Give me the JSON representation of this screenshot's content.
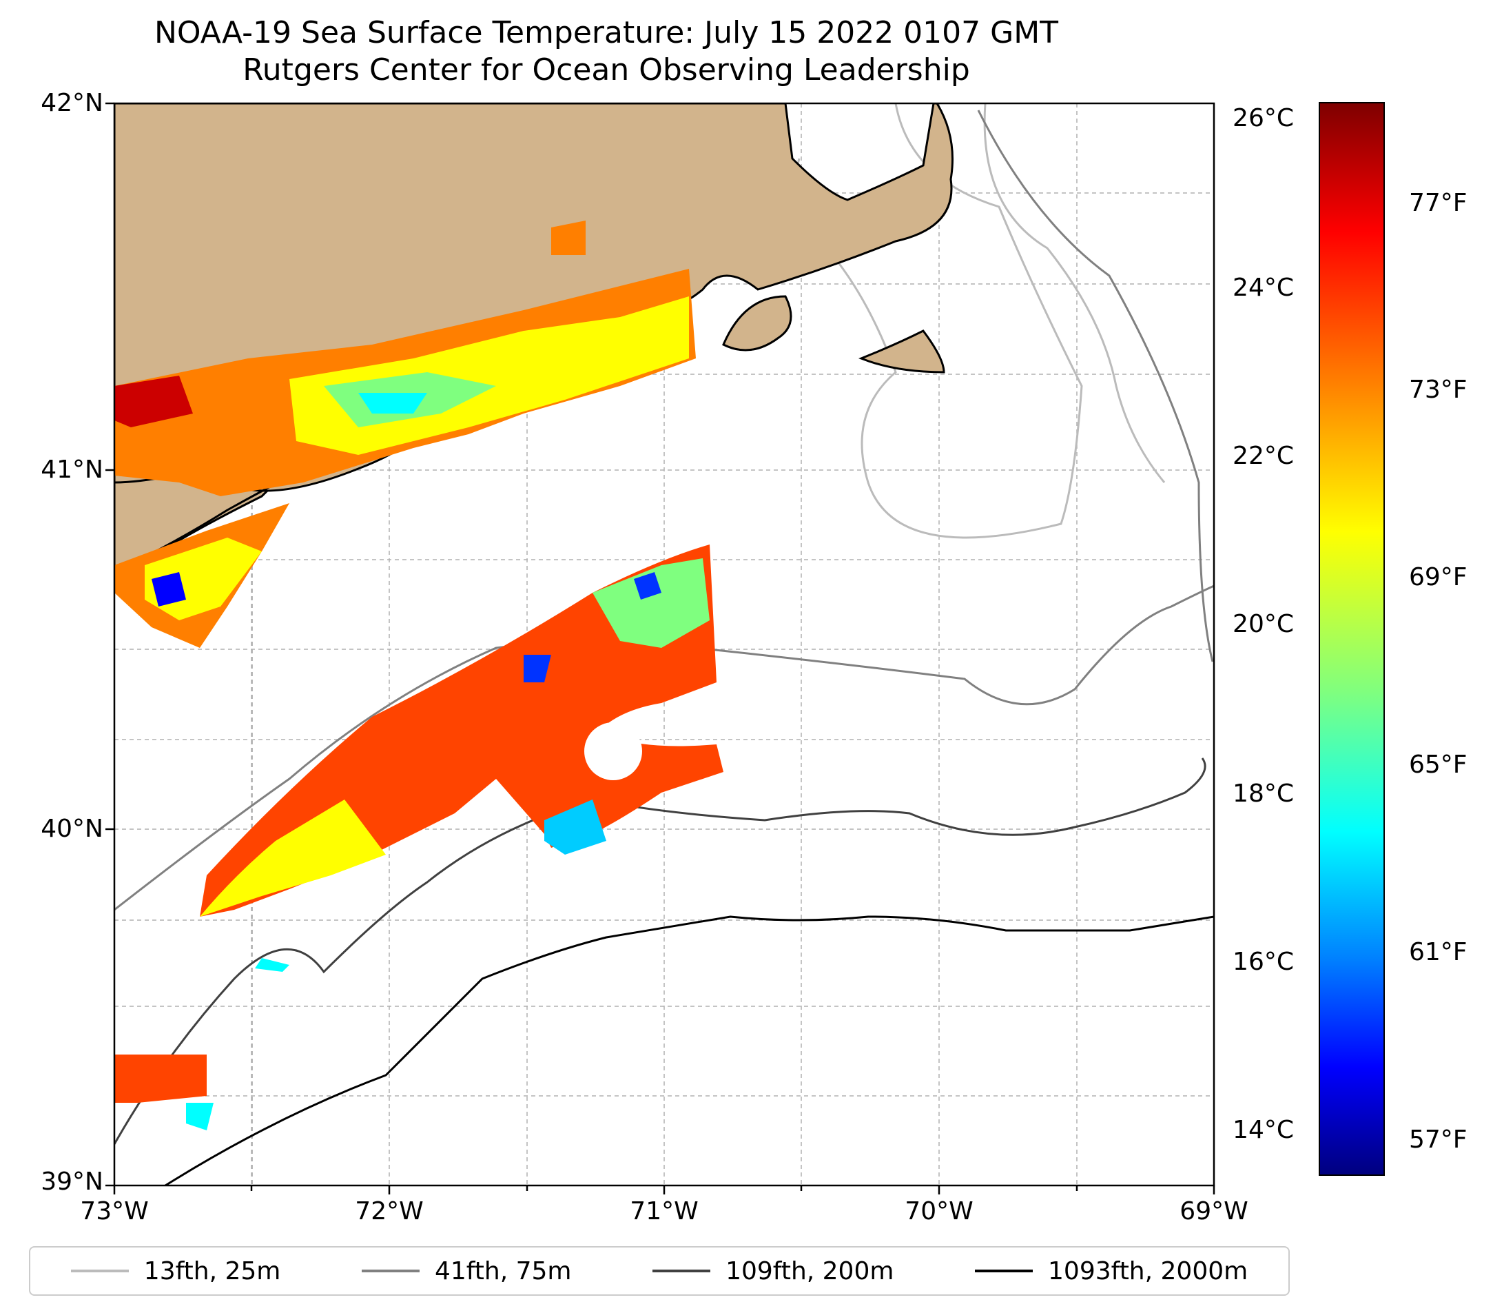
{
  "title": {
    "line1": "NOAA-19 Sea Surface Temperature: July 15 2022 0107 GMT",
    "line2": "Rutgers Center for Ocean Observing Leadership"
  },
  "map": {
    "x_ticks": [
      "73°W",
      "72°W",
      "71°W",
      "70°W",
      "69°W"
    ],
    "y_ticks": [
      "42°N",
      "41°N",
      "40°N",
      "39°N"
    ],
    "land_color": "#d2b48c",
    "grid": true
  },
  "colorbar": {
    "celsius_ticks": [
      "26°C",
      "24°C",
      "22°C",
      "20°C",
      "18°C",
      "16°C",
      "14°C"
    ],
    "fahrenheit_ticks": [
      "77°F",
      "73°F",
      "69°F",
      "65°F",
      "61°F",
      "57°F"
    ],
    "colormap": "jet"
  },
  "legend": {
    "items": [
      {
        "label": "13fth, 25m",
        "color": "#bbbbbb"
      },
      {
        "label": "41fth, 75m",
        "color": "#808080"
      },
      {
        "label": "109fth, 200m",
        "color": "#404040"
      },
      {
        "label": "1093fth, 2000m",
        "color": "#000000"
      }
    ]
  }
}
